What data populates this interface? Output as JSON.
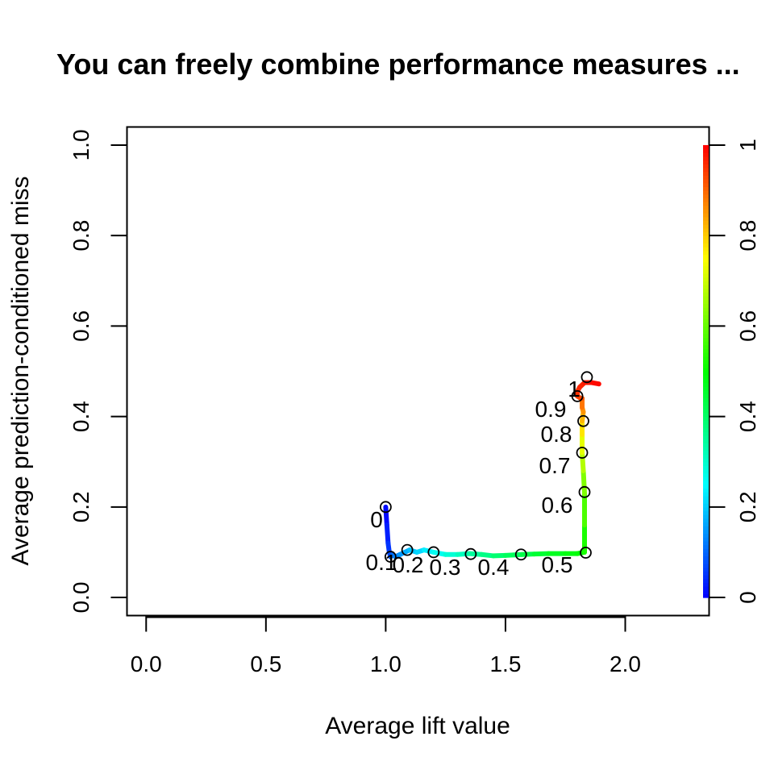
{
  "chart_data": {
    "type": "line",
    "title": "You can freely combine performance measures ...",
    "xlabel": "Average lift value",
    "ylabel": "Average prediction-conditioned miss",
    "xlim": [
      -0.08,
      2.35
    ],
    "ylim": [
      -0.04,
      1.04
    ],
    "x_ticks": [
      "0.0",
      "0.5",
      "1.0",
      "1.5",
      "2.0"
    ],
    "x_tick_values": [
      0.0,
      0.5,
      1.0,
      1.5,
      2.0
    ],
    "y_ticks": [
      "0.0",
      "0.2",
      "0.4",
      "0.6",
      "0.8",
      "1.0"
    ],
    "y_tick_values": [
      0.0,
      0.2,
      0.4,
      0.6,
      0.8,
      1.0
    ],
    "colorbar": {
      "ticks": [
        "0",
        "0.2",
        "0.4",
        "0.6",
        "0.8",
        "1"
      ],
      "tick_values": [
        0,
        0.2,
        0.4,
        0.6,
        0.8,
        1.0
      ],
      "range": [
        0,
        1
      ],
      "colormap": "rainbow (blue to red)"
    },
    "grid": false,
    "series": [
      {
        "x": [
          1.0,
          1.005,
          1.01,
          1.015,
          1.02,
          1.03,
          1.04,
          1.06,
          1.08,
          1.1,
          1.13,
          1.16,
          1.2,
          1.25,
          1.3,
          1.35,
          1.4,
          1.45,
          1.5,
          1.57,
          1.62,
          1.68,
          1.75,
          1.8,
          1.83,
          1.83,
          1.83,
          1.825,
          1.82,
          1.82,
          1.82,
          1.825,
          1.82,
          1.82,
          1.815,
          1.8,
          1.8,
          1.81,
          1.83,
          1.86,
          1.89
        ],
        "y": [
          0.2,
          0.16,
          0.12,
          0.1,
          0.09,
          0.095,
          0.09,
          0.095,
          0.1,
          0.105,
          0.1,
          0.105,
          0.1,
          0.095,
          0.095,
          0.097,
          0.095,
          0.092,
          0.093,
          0.095,
          0.096,
          0.097,
          0.097,
          0.097,
          0.1,
          0.16,
          0.23,
          0.28,
          0.32,
          0.36,
          0.39,
          0.41,
          0.42,
          0.44,
          0.44,
          0.445,
          0.455,
          0.465,
          0.475,
          0.475,
          0.472
        ],
        "cutoff": [
          0.0,
          0.02,
          0.04,
          0.06,
          0.08,
          0.1,
          0.12,
          0.14,
          0.16,
          0.18,
          0.2,
          0.22,
          0.25,
          0.28,
          0.3,
          0.33,
          0.36,
          0.38,
          0.4,
          0.42,
          0.44,
          0.46,
          0.48,
          0.49,
          0.5,
          0.55,
          0.6,
          0.65,
          0.7,
          0.75,
          0.8,
          0.84,
          0.87,
          0.9,
          0.92,
          0.94,
          0.95,
          0.96,
          0.97,
          0.98,
          1.0
        ]
      }
    ],
    "markers": [
      {
        "label": "0",
        "x": 1.0,
        "y": 0.2
      },
      {
        "label": "0.1",
        "x": 1.02,
        "y": 0.09
      },
      {
        "label": "0.2",
        "x": 1.09,
        "y": 0.105
      },
      {
        "label": "0.3",
        "x": 1.2,
        "y": 0.1
      },
      {
        "label": "0.4",
        "x": 1.355,
        "y": 0.096
      },
      {
        "label": "0.5",
        "x": 1.565,
        "y": 0.095
      },
      {
        "label": "0.6",
        "x": 1.835,
        "y": 0.099
      },
      {
        "label": "0.7",
        "x": 1.83,
        "y": 0.233
      },
      {
        "label": "0.8",
        "x": 1.82,
        "y": 0.32
      },
      {
        "label": "0.9",
        "x": 1.825,
        "y": 0.39
      },
      {
        "label": "1",
        "x": 1.8,
        "y": 0.445
      },
      {
        "label": "",
        "x": 1.84,
        "y": 0.487
      }
    ]
  }
}
